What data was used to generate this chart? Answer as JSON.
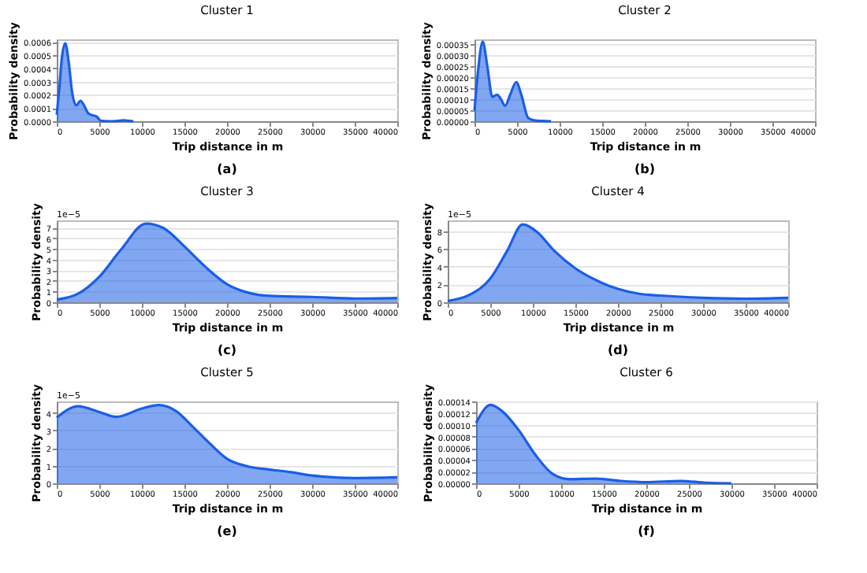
{
  "chart_data": [
    {
      "type": "area",
      "title": "Cluster 1",
      "xlabel": "Trip distance in m",
      "ylabel": "Probability density",
      "color": "#1a5ee8",
      "grid": "y",
      "annotations": [
        "(a)"
      ],
      "x": [
        0,
        300,
        600,
        1000,
        1400,
        1800,
        2300,
        2800,
        3200,
        3700,
        4200,
        4700,
        5200,
        6000,
        7000,
        7800,
        8600,
        9000
      ],
      "values": [
        5e-05,
        0.00025,
        0.00048,
        0.00059,
        0.00045,
        0.00022,
        0.00012,
        0.000155,
        0.00012,
        6e-05,
        4.5e-05,
        3.5e-05,
        3e-06,
        0,
        1e-06,
        7e-06,
        2e-06,
        0
      ],
      "xlim": [
        0,
        40000
      ],
      "xticks": [
        0,
        5000,
        10000,
        15000,
        20000,
        25000,
        30000,
        35000,
        40000
      ],
      "ylim": [
        0,
        0.00062
      ],
      "yticks": [
        {
          "value": 0,
          "label": "0.0000"
        },
        {
          "value": 0.0001,
          "label": "0.0001"
        },
        {
          "value": 0.0002,
          "label": "0.0002"
        },
        {
          "value": 0.0003,
          "label": "0.0003"
        },
        {
          "value": 0.0004,
          "label": "0.0004"
        },
        {
          "value": 0.0005,
          "label": "0.0005"
        },
        {
          "value": 0.0006,
          "label": "0.0006"
        }
      ]
    },
    {
      "type": "area",
      "title": "Cluster 2",
      "xlabel": "Trip distance in m",
      "ylabel": "Probability density",
      "color": "#1a5ee8",
      "grid": "y",
      "annotations": [
        "(b)"
      ],
      "x": [
        0,
        400,
        960,
        1500,
        2100,
        2650,
        3100,
        3600,
        4200,
        4900,
        5500,
        6300,
        7000,
        8000,
        9000
      ],
      "values": [
        5e-05,
        0.00022,
        0.00036,
        0.00025,
        0.00011,
        0.00012,
        0.0001,
        7e-05,
        0.00012,
        0.000177,
        0.00012,
        1.5e-05,
        4e-06,
        1e-06,
        0
      ],
      "xlim": [
        0,
        40000
      ],
      "xticks": [
        0,
        5000,
        10000,
        15000,
        20000,
        25000,
        30000,
        35000,
        40000
      ],
      "ylim": [
        0,
        0.00037
      ],
      "yticks": [
        {
          "value": 0,
          "label": "0.00000"
        },
        {
          "value": 5e-05,
          "label": "0.00005"
        },
        {
          "value": 0.0001,
          "label": "0.00010"
        },
        {
          "value": 0.00015,
          "label": "0.00015"
        },
        {
          "value": 0.0002,
          "label": "0.00020"
        },
        {
          "value": 0.00025,
          "label": "0.00025"
        },
        {
          "value": 0.0003,
          "label": "0.00030"
        },
        {
          "value": 0.00035,
          "label": "0.00035"
        }
      ]
    },
    {
      "type": "area",
      "title": "Cluster 3",
      "xlabel": "Trip distance in m",
      "ylabel": "Probability density",
      "color": "#1a5ee8",
      "grid": "y",
      "annotations": [
        "(c)",
        "1e−5"
      ],
      "x": [
        0,
        2500,
        5000,
        7500,
        10500,
        12500,
        15000,
        17500,
        20000,
        22500,
        25000,
        30000,
        35000,
        40000
      ],
      "values": [
        0.25,
        0.8,
        2.4,
        4.9,
        7.4,
        7.0,
        5.25,
        3.3,
        1.7,
        0.9,
        0.6,
        0.5,
        0.35,
        0.4
      ],
      "xlim": [
        0,
        40000
      ],
      "xticks": [
        0,
        5000,
        10000,
        15000,
        20000,
        25000,
        30000,
        35000,
        40000
      ],
      "ylim": [
        0,
        7.7
      ],
      "yticks": [
        0,
        1,
        2,
        3,
        4,
        5,
        6,
        7
      ]
    },
    {
      "type": "area",
      "title": "Cluster 4",
      "xlabel": "Trip distance in m",
      "ylabel": "Probability density",
      "color": "#1a5ee8",
      "grid": "y",
      "annotations": [
        "(d)",
        "1e−5"
      ],
      "x": [
        0,
        2500,
        5000,
        7000,
        8800,
        10500,
        12500,
        15000,
        17500,
        20000,
        22500,
        25000,
        30000,
        35000,
        40000
      ],
      "values": [
        0.15,
        0.8,
        2.65,
        5.8,
        8.75,
        7.9,
        5.8,
        3.8,
        2.45,
        1.5,
        0.95,
        0.75,
        0.5,
        0.4,
        0.5
      ],
      "xlim": [
        0,
        40000
      ],
      "xticks": [
        0,
        5000,
        10000,
        15000,
        20000,
        25000,
        30000,
        35000,
        40000
      ],
      "ylim": [
        0,
        9.2
      ],
      "yticks": [
        0,
        2,
        4,
        6,
        8
      ]
    },
    {
      "type": "area",
      "title": "Cluster 5",
      "xlabel": "Trip distance in m",
      "ylabel": "Probability density",
      "color": "#1a5ee8",
      "grid": "y",
      "annotations": [
        "(e)",
        "1e−5"
      ],
      "x": [
        0,
        2500,
        5000,
        7000,
        10000,
        12000,
        14000,
        16000,
        18000,
        20000,
        22500,
        25000,
        27500,
        30000,
        32500,
        35000,
        40000
      ],
      "values": [
        3.73,
        4.38,
        4.05,
        3.77,
        4.25,
        4.44,
        4.11,
        3.2,
        2.25,
        1.39,
        0.95,
        0.78,
        0.63,
        0.44,
        0.34,
        0.3,
        0.34
      ],
      "xlim": [
        0,
        40000
      ],
      "xticks": [
        0,
        5000,
        10000,
        15000,
        20000,
        25000,
        30000,
        35000,
        40000
      ],
      "ylim": [
        0,
        4.65
      ],
      "yticks": [
        0,
        1,
        2,
        3,
        4
      ]
    },
    {
      "type": "area",
      "title": "Cluster 6",
      "xlabel": "Trip distance in m",
      "ylabel": "Probability density",
      "color": "#1a5ee8",
      "grid": "y",
      "annotations": [
        "(f)"
      ],
      "x": [
        0,
        1700,
        3000,
        5000,
        7000,
        9000,
        11000,
        14000,
        17000,
        20000,
        24000,
        27000,
        30000
      ],
      "values": [
        0.000103,
        0.000134,
        0.000124,
        9.1e-05,
        4.8e-05,
        1.6e-05,
        7e-06,
        8e-06,
        4e-06,
        2e-06,
        4e-06,
        1e-06,
        0
      ],
      "xlim": [
        0,
        40000
      ],
      "xticks": [
        0,
        5000,
        10000,
        15000,
        20000,
        25000,
        30000,
        35000,
        40000
      ],
      "ylim": [
        0,
        0.00014
      ],
      "yticks": [
        {
          "value": 0,
          "label": "0.00000"
        },
        {
          "value": 2e-05,
          "label": "0.00002"
        },
        {
          "value": 4e-05,
          "label": "0.00004"
        },
        {
          "value": 6e-05,
          "label": "0.00006"
        },
        {
          "value": 8e-05,
          "label": "0.00008"
        },
        {
          "value": 0.0001,
          "label": "0.00010"
        },
        {
          "value": 0.00012,
          "label": "0.00012"
        },
        {
          "value": 0.00014,
          "label": "0.00014"
        }
      ]
    }
  ]
}
